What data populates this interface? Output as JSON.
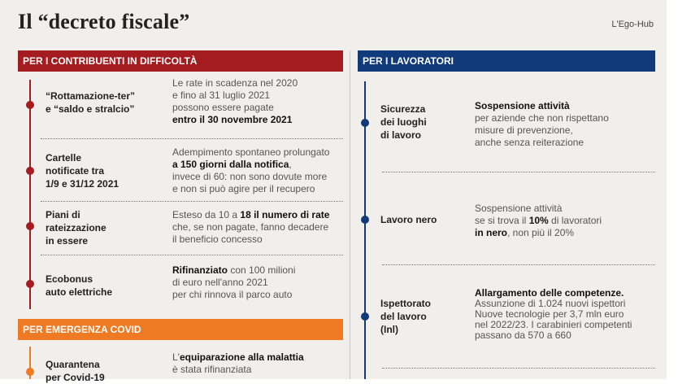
{
  "header": {
    "title": "Il “decreto fiscale”",
    "source": "L'Ego-Hub"
  },
  "sections": {
    "contribuenti": "PER I CONTRIBUENTI IN DIFFICOLTÀ",
    "covid": "PER EMERGENZA COVID",
    "lavoratori": "PER I LAVORATORI"
  },
  "left_items": [
    {
      "label": [
        "“Rottamazione-ter”",
        "e “saldo e stralcio”"
      ],
      "text": [
        "Le rate in scadenza nel 2020",
        "e fino al 31 luglio 2021",
        "possono essere pagate",
        "entro il 30 novembre 2021"
      ]
    },
    {
      "label": [
        "Cartelle",
        "notificate tra",
        "1/9 e 31/12 2021"
      ],
      "text": [
        "Adempimento spontaneo prolungato",
        "a 150 giorni dalla notifica",
        ",",
        "invece di 60: non sono dovute more",
        "e non si può agire per il recupero"
      ]
    },
    {
      "label": [
        "Piani di",
        "rateizzazione",
        "in essere"
      ],
      "text": [
        "Esteso da 10 a ",
        "18 il numero di rate",
        "che, se non pagate, fanno decadere",
        "il beneficio concesso"
      ]
    },
    {
      "label": [
        "Ecobonus",
        "auto elettriche"
      ],
      "text": [
        "Rifinanziato",
        " con 100 milioni",
        "di euro nell'anno 2021",
        "per chi rinnova il parco auto"
      ]
    }
  ],
  "covid_item": {
    "label": [
      "Quarantena",
      "per Covid-19"
    ],
    "text": [
      "L'",
      "equiparazione alla malattia",
      "è stata rifinanziata"
    ]
  },
  "right_items": [
    {
      "label": [
        "Sicurezza",
        "dei luoghi",
        "di lavoro"
      ],
      "text": [
        "Sospensione attività",
        "per aziende che non rispettano",
        "misure di prevenzione,",
        "anche senza reiterazione"
      ]
    },
    {
      "label": [
        "Lavoro nero"
      ],
      "text": [
        "Sospensione attività",
        "se si trova il ",
        "10%",
        " di lavoratori",
        "in nero",
        ", non più il 20%"
      ]
    },
    {
      "label": [
        "Ispettorato",
        "del lavoro",
        "(Inl)"
      ],
      "text": [
        "Allargamento delle competenze.",
        "Assunzione di 1.024 nuovi ispettori",
        "Nuove tecnologie per 3,7 mln euro",
        "nel 2022/23. I carabinieri competenti",
        "passano da 570 a 660"
      ]
    }
  ],
  "colors": {
    "red": "#a51c20",
    "orange": "#ee7a24",
    "blue": "#103a7a",
    "background": "#f1efeb"
  }
}
